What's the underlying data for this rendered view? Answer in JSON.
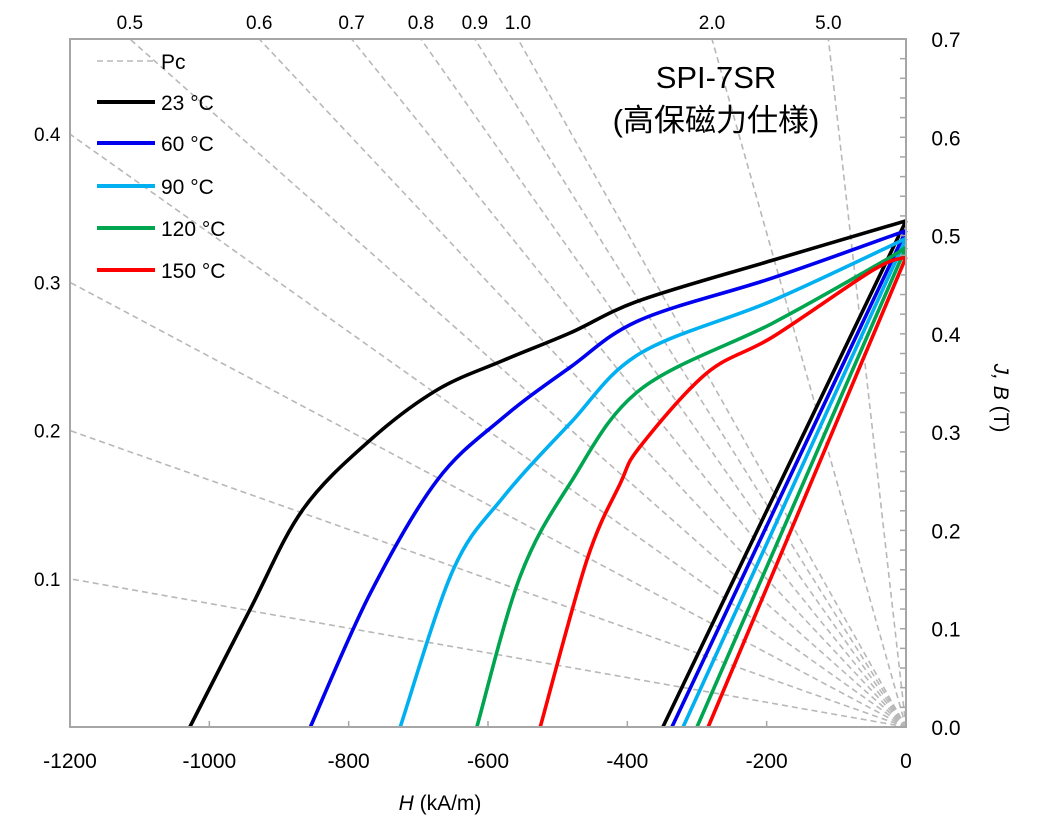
{
  "chart_data": {
    "type": "line",
    "title": "SPI-7SR",
    "subtitle": "(高保磁力仕様)",
    "xlabel_italic": "H",
    "xlabel_unit": " (kA/m)",
    "ylabel_italic": "J, B",
    "ylabel_unit": " (T)",
    "xlim": [
      -1200,
      0
    ],
    "ylim": [
      0,
      0.7
    ],
    "x_ticks": [
      "-1200",
      "-1000",
      "-800",
      "-600",
      "-400",
      "-200",
      "0"
    ],
    "x_tick_values": [
      -1200,
      -1000,
      -800,
      -600,
      -400,
      -200,
      0
    ],
    "y_ticks": [
      "0.0",
      "0.1",
      "0.2",
      "0.3",
      "0.4",
      "0.5",
      "0.6",
      "0.7"
    ],
    "y_tick_values": [
      0,
      0.1,
      0.2,
      0.3,
      0.4,
      0.5,
      0.6,
      0.7
    ],
    "y_axis_side": "right",
    "grid": false,
    "legend_position": "top-left",
    "permeance_lines": {
      "name": "Pc",
      "color": "#b8b8b8",
      "values": [
        0.1,
        0.2,
        0.3,
        0.4,
        0.5,
        0.6,
        0.7,
        0.8,
        0.9,
        1.0,
        2.0,
        5.0
      ],
      "labels": [
        "0.1",
        "0.2",
        "0.3",
        "0.4",
        "0.5",
        "0.6",
        "0.7",
        "0.8",
        "0.9",
        "1.0",
        "2.0",
        "5.0"
      ]
    },
    "series": [
      {
        "name": "23 °C",
        "color": "#000000",
        "J": {
          "H": [
            -1028,
            -942,
            -866,
            -769,
            -673,
            -578,
            -482,
            -382,
            -191,
            0
          ],
          "values": [
            0,
            0.119,
            0.221,
            0.292,
            0.343,
            0.373,
            0.401,
            0.434,
            0.475,
            0.515
          ]
        },
        "B": {
          "H": [
            -349,
            0
          ],
          "values": [
            0,
            0.515
          ]
        }
      },
      {
        "name": "60 °C",
        "color": "#0000ee",
        "J": {
          "H": [
            -855,
            -769,
            -673,
            -578,
            -482,
            -382,
            -191,
            0
          ],
          "values": [
            0,
            0.136,
            0.251,
            0.315,
            0.366,
            0.414,
            0.457,
            0.505
          ]
        },
        "B": {
          "H": [
            -336,
            0
          ],
          "values": [
            0,
            0.505
          ]
        }
      },
      {
        "name": "90 °C",
        "color": "#00b0f0",
        "J": {
          "H": [
            -726,
            -650,
            -578,
            -482,
            -382,
            -191,
            0
          ],
          "values": [
            0,
            0.16,
            0.234,
            0.309,
            0.38,
            0.434,
            0.497
          ]
        },
        "B": {
          "H": [
            -320,
            0
          ],
          "values": [
            0,
            0.497
          ]
        }
      },
      {
        "name": "120 °C",
        "color": "#00a550",
        "J": {
          "H": [
            -616,
            -554,
            -482,
            -382,
            -191,
            -37,
            0
          ],
          "values": [
            0,
            0.153,
            0.248,
            0.343,
            0.411,
            0.472,
            0.488
          ]
        },
        "B": {
          "H": [
            -300,
            0
          ],
          "values": [
            0,
            0.488
          ]
        }
      },
      {
        "name": "150 °C",
        "color": "#ff0000",
        "J": {
          "H": [
            -525,
            -458,
            -410,
            -382,
            -286,
            -191,
            -47,
            0
          ],
          "values": [
            0,
            0.17,
            0.248,
            0.285,
            0.36,
            0.397,
            0.465,
            0.478
          ]
        },
        "B": {
          "H": [
            -284,
            0
          ],
          "values": [
            0,
            0.478
          ]
        }
      }
    ]
  }
}
